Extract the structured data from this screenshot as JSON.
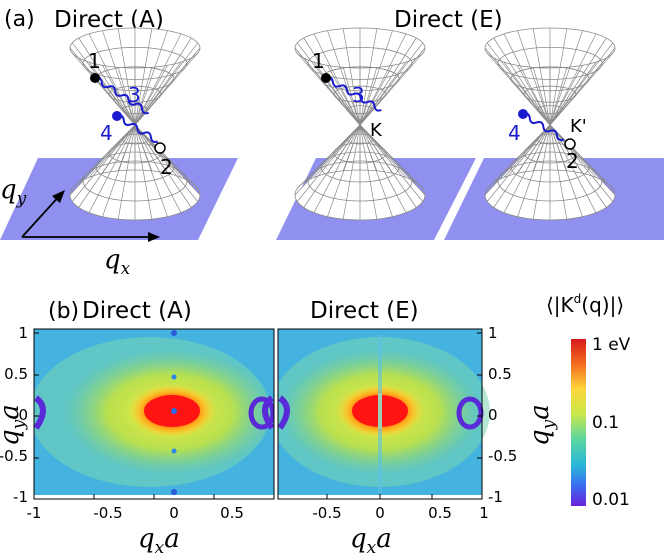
{
  "panel_a": {
    "label": "(a)",
    "title_left": "Direct (A)",
    "title_right": "Direct (E)",
    "axis_qx": "q",
    "axis_qx_sub": "x",
    "axis_qy": "q",
    "axis_qy_sub": "y",
    "point_labels": [
      "1",
      "2",
      "3",
      "4"
    ],
    "valley_K": "K",
    "valley_Kp": "K'"
  },
  "panel_b": {
    "label": "(b)",
    "title_left": "Direct (A)",
    "title_right": "Direct (E)",
    "xlabel_q": "q",
    "xlabel_sub": "x",
    "xlabel_a": "a",
    "ylabel_q": "q",
    "ylabel_sub": "y",
    "ylabel_a": "a",
    "xticks_left": [
      "-1",
      "-0.5",
      "0",
      "0.5"
    ],
    "xticks_right": [
      "-0.5",
      "0",
      "0.5",
      "1"
    ],
    "yticks": [
      "1",
      "0.5",
      "0",
      "-0.5",
      "-1"
    ],
    "colorbar_label": "⟨|K",
    "colorbar_label_sup": "d",
    "colorbar_label_rest": "(q)|⟩",
    "colorbar_ticks": [
      "1 eV",
      "0.1",
      "0.01"
    ]
  },
  "colors": {
    "plane": "#9090f0",
    "cone_line": "#8a8a8a",
    "marker_blue": "#1a1ad0",
    "wave": "#1a1ad0"
  },
  "chart_data": {
    "type": "heatmap",
    "maps": [
      {
        "name": "Direct (A)",
        "x_range": [
          -1,
          1
        ],
        "y_range": [
          -1,
          1
        ]
      },
      {
        "name": "Direct (E)",
        "x_range": [
          -1,
          1
        ],
        "y_range": [
          -1,
          1
        ]
      }
    ],
    "color_scale": "log",
    "color_range": [
      0.01,
      1
    ],
    "color_unit": "eV"
  }
}
